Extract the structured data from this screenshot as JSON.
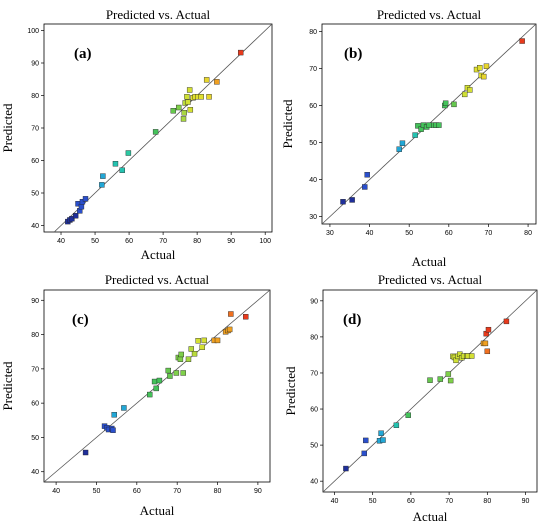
{
  "chart_data": [
    {
      "type": "scatter",
      "title": "Predicted vs. Actual",
      "panel_label": "(a)",
      "xlabel": "Actual",
      "ylabel": "Predicted",
      "xlim": [
        35,
        102
      ],
      "ylim": [
        38,
        102
      ],
      "xticks": [
        40,
        50,
        60,
        70,
        80,
        90,
        100
      ],
      "yticks": [
        40,
        50,
        60,
        70,
        80,
        90,
        100
      ],
      "x": [
        42.0,
        42.6,
        43.2,
        44.3,
        45.0,
        45.5,
        46.0,
        46.3,
        47.2,
        52.0,
        52.3,
        56.0,
        58.0,
        59.8,
        67.8,
        73.0,
        74.6,
        76.0,
        76.2,
        76.5,
        77.0,
        77.3,
        77.8,
        78.0,
        78.8,
        79.4,
        80.3,
        81.2,
        82.8,
        83.5,
        85.8,
        92.8
      ],
      "y": [
        41.2,
        41.7,
        42.1,
        43.0,
        46.7,
        44.5,
        45.8,
        47.3,
        48.2,
        52.5,
        55.2,
        59.0,
        57.0,
        62.3,
        68.8,
        75.3,
        76.3,
        72.8,
        74.7,
        77.7,
        79.6,
        78.0,
        81.7,
        75.6,
        79.3,
        79.6,
        79.6,
        79.6,
        84.8,
        79.6,
        84.2,
        93.2
      ],
      "colors": [
        "#1f2f9a",
        "#1f2f9a",
        "#1f2f9a",
        "#1f2f9a",
        "#2a4fcc",
        "#2a4fcc",
        "#2a4fcc",
        "#2a4fcc",
        "#2a4fcc",
        "#22a7d6",
        "#22a7d6",
        "#25c2b0",
        "#25c2b0",
        "#2bc9a3",
        "#44c25a",
        "#66c84e",
        "#7fd04a",
        "#a8d640",
        "#a8d640",
        "#b8da3c",
        "#cfe035",
        "#cfe035",
        "#d4e032",
        "#d4e032",
        "#e0e030",
        "#e0e030",
        "#e0e030",
        "#e0e030",
        "#e7d52e",
        "#e7d52e",
        "#f0a020",
        "#e83a1c"
      ]
    },
    {
      "type": "scatter",
      "title": "Predicted vs. Actual",
      "panel_label": "(b)",
      "xlabel": "Actual",
      "ylabel": "Predicted",
      "xlim": [
        28,
        82
      ],
      "ylim": [
        28,
        82
      ],
      "xticks": [
        30,
        40,
        50,
        60,
        70,
        80
      ],
      "yticks": [
        30,
        40,
        50,
        60,
        70,
        80
      ],
      "x": [
        33.3,
        35.6,
        38.8,
        39.4,
        47.5,
        48.3,
        51.5,
        52.2,
        53.0,
        53.6,
        54.4,
        55.0,
        56.2,
        56.8,
        57.5,
        59.0,
        59.2,
        61.3,
        64.0,
        64.7,
        65.3,
        67.0,
        67.8,
        68.2,
        68.8,
        69.5,
        78.5
      ],
      "y": [
        34.0,
        34.5,
        38.0,
        41.3,
        48.2,
        49.8,
        52.0,
        54.5,
        53.6,
        54.7,
        54.2,
        54.7,
        54.7,
        54.7,
        54.7,
        60.0,
        60.6,
        60.3,
        63.0,
        64.8,
        64.2,
        69.7,
        70.2,
        68.1,
        67.8,
        70.6,
        77.4
      ],
      "colors": [
        "#1f2f9a",
        "#1f2f9a",
        "#2a4fcc",
        "#2a4fcc",
        "#22a7d6",
        "#22a7d6",
        "#25c2b0",
        "#44c25a",
        "#44c25a",
        "#44c25a",
        "#44c25a",
        "#44c25a",
        "#44c25a",
        "#44c25a",
        "#44c25a",
        "#44c25a",
        "#44c25a",
        "#66c84e",
        "#cfe035",
        "#d4e032",
        "#d4e032",
        "#e0e030",
        "#e0e030",
        "#e0e030",
        "#e7d52e",
        "#e7d52e",
        "#e83a1c"
      ]
    },
    {
      "type": "scatter",
      "title": "Predicted vs. Actual",
      "panel_label": "(c)",
      "xlabel": "Actual",
      "ylabel": "Predicted",
      "xlim": [
        37,
        93
      ],
      "ylim": [
        37,
        93
      ],
      "xticks": [
        40,
        50,
        60,
        70,
        80,
        90
      ],
      "yticks": [
        40,
        50,
        60,
        70,
        80,
        90
      ],
      "x": [
        47.3,
        52.0,
        52.6,
        53.0,
        53.8,
        54.1,
        54.4,
        56.8,
        63.2,
        64.4,
        64.8,
        65.6,
        67.8,
        68.2,
        69.8,
        70.3,
        70.8,
        71.0,
        71.5,
        72.8,
        73.5,
        74.3,
        75.2,
        76.2,
        76.7,
        79.2,
        80.0,
        82.0,
        82.6,
        83.0,
        83.3,
        87.0
      ],
      "y": [
        45.6,
        53.3,
        52.8,
        52.3,
        52.6,
        52.1,
        56.6,
        58.6,
        62.5,
        66.3,
        64.3,
        66.6,
        69.5,
        67.9,
        68.8,
        73.3,
        72.8,
        74.2,
        68.8,
        72.8,
        75.8,
        74.4,
        78.2,
        76.3,
        78.3,
        78.3,
        78.3,
        80.8,
        81.2,
        81.5,
        86.0,
        85.2
      ],
      "colors": [
        "#1f2f9a",
        "#2a4fcc",
        "#2a4fcc",
        "#2a4fcc",
        "#2a4fcc",
        "#2a4fcc",
        "#22a7d6",
        "#22a7d6",
        "#44c25a",
        "#44c25a",
        "#44c25a",
        "#44c25a",
        "#66c84e",
        "#66c84e",
        "#7fd04a",
        "#7fd04a",
        "#7fd04a",
        "#7fd04a",
        "#7fd04a",
        "#a8d640",
        "#b8da3c",
        "#b8da3c",
        "#d4e032",
        "#d4e032",
        "#d4e032",
        "#f0a020",
        "#f0a020",
        "#f0a020",
        "#f0a020",
        "#f0a020",
        "#f07020",
        "#e83a1c"
      ]
    },
    {
      "type": "scatter",
      "title": "Predicted vs. Actual",
      "panel_label": "(d)",
      "xlabel": "Actual",
      "ylabel": "Predicted",
      "xlim": [
        37,
        93
      ],
      "ylim": [
        37,
        93
      ],
      "xticks": [
        40,
        50,
        60,
        70,
        80,
        90
      ],
      "yticks": [
        40,
        50,
        60,
        70,
        80,
        90
      ],
      "x": [
        43.0,
        47.8,
        48.2,
        51.8,
        52.2,
        52.7,
        56.2,
        59.3,
        65.0,
        67.7,
        69.8,
        70.4,
        71.0,
        71.4,
        71.8,
        72.3,
        72.8,
        73.3,
        73.8,
        74.6,
        75.0,
        75.9,
        79.0,
        79.5,
        79.7,
        80.0,
        80.3,
        85.0
      ],
      "y": [
        43.5,
        47.7,
        51.3,
        51.2,
        53.3,
        51.4,
        55.5,
        58.3,
        68.0,
        68.3,
        69.7,
        67.9,
        74.6,
        74.3,
        73.5,
        74.6,
        75.2,
        74.2,
        74.7,
        74.7,
        74.7,
        74.7,
        78.2,
        78.2,
        80.9,
        76.0,
        82.0,
        84.3
      ],
      "colors": [
        "#1f2f9a",
        "#2a4fcc",
        "#2a4fcc",
        "#22a7d6",
        "#22a7d6",
        "#22a7d6",
        "#25c2b0",
        "#44c25a",
        "#66c84e",
        "#66c84e",
        "#7fd04a",
        "#7fd04a",
        "#cfe035",
        "#cfe035",
        "#cfe035",
        "#cfe035",
        "#cfe035",
        "#cfe035",
        "#cfe035",
        "#d4e032",
        "#d4e032",
        "#d4e032",
        "#f0a020",
        "#f0a020",
        "#e83a1c",
        "#f07020",
        "#e83a1c",
        "#e83a1c"
      ]
    }
  ]
}
